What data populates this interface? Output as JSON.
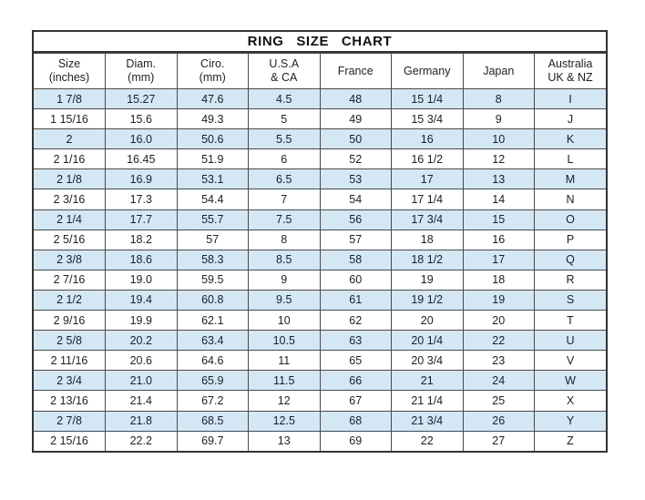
{
  "page": {
    "background_color": "#ffffff",
    "text_color": "#1c1c1c"
  },
  "chart_data": {
    "type": "table",
    "title": "RING SIZE CHART",
    "columns": [
      "Size\n(inches)",
      "Diam.\n(mm)",
      "Ciro.\n(mm)",
      "U.S.A\n& CA",
      "France",
      "Germany",
      "Japan",
      "Australia\nUK & NZ"
    ],
    "rows": [
      [
        "1 7/8",
        "15.27",
        "47.6",
        "4.5",
        "48",
        "15 1/4",
        "8",
        "I"
      ],
      [
        "1 15/16",
        "15.6",
        "49.3",
        "5",
        "49",
        "15 3/4",
        "9",
        "J"
      ],
      [
        "2",
        "16.0",
        "50.6",
        "5.5",
        "50",
        "16",
        "10",
        "K"
      ],
      [
        "2 1/16",
        "16.45",
        "51.9",
        "6",
        "52",
        "16 1/2",
        "12",
        "L"
      ],
      [
        "2 1/8",
        "16.9",
        "53.1",
        "6.5",
        "53",
        "17",
        "13",
        "M"
      ],
      [
        "2 3/16",
        "17.3",
        "54.4",
        "7",
        "54",
        "17 1/4",
        "14",
        "N"
      ],
      [
        "2 1/4",
        "17.7",
        "55.7",
        "7.5",
        "56",
        "17 3/4",
        "15",
        "O"
      ],
      [
        "2 5/16",
        "18.2",
        "57",
        "8",
        "57",
        "18",
        "16",
        "P"
      ],
      [
        "2 3/8",
        "18.6",
        "58.3",
        "8.5",
        "58",
        "18 1/2",
        "17",
        "Q"
      ],
      [
        "2 7/16",
        "19.0",
        "59.5",
        "9",
        "60",
        "19",
        "18",
        "R"
      ],
      [
        "2 1/2",
        "19.4",
        "60.8",
        "9.5",
        "61",
        "19 1/2",
        "19",
        "S"
      ],
      [
        "2 9/16",
        "19.9",
        "62.1",
        "10",
        "62",
        "20",
        "20",
        "T"
      ],
      [
        "2 5/8",
        "20.2",
        "63.4",
        "10.5",
        "63",
        "20 1/4",
        "22",
        "U"
      ],
      [
        "2 11/16",
        "20.6",
        "64.6",
        "11",
        "65",
        "20 3/4",
        "23",
        "V"
      ],
      [
        "2 3/4",
        "21.0",
        "65.9",
        "11.5",
        "66",
        "21",
        "24",
        "W"
      ],
      [
        "2 13/16",
        "21.4",
        "67.2",
        "12",
        "67",
        "21 1/4",
        "25",
        "X"
      ],
      [
        "2 7/8",
        "21.8",
        "68.5",
        "12.5",
        "68",
        "21 3/4",
        "26",
        "Y"
      ],
      [
        "2 15/16",
        "22.2",
        "69.7",
        "13",
        "69",
        "22",
        "27",
        "Z"
      ]
    ],
    "style": {
      "stripe_color": "#d4e7f5",
      "stripe_pattern": "odd-rows-highlighted",
      "grid_border_color": "#4a4a4a",
      "outer_border_color": "#333333"
    }
  }
}
